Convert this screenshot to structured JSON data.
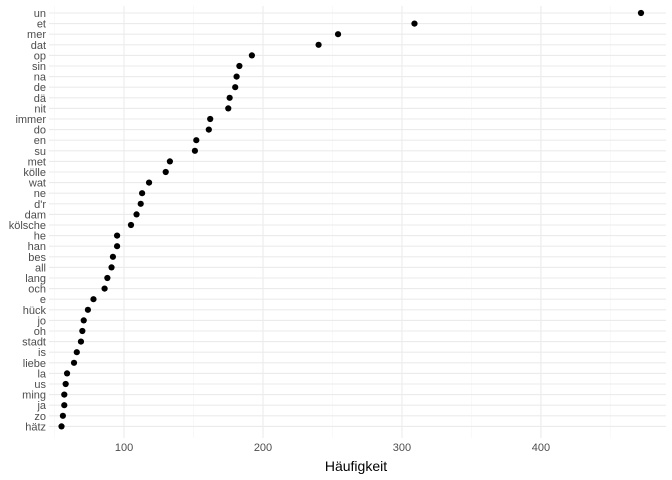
{
  "chart_data": {
    "type": "scatter",
    "xlabel": "Häufigkeit",
    "ylabel": "",
    "title": "",
    "xlim": [
      46,
      490
    ],
    "x_ticks": [
      100,
      200,
      300,
      400
    ],
    "grid": true,
    "point_color": "#000000",
    "grid_major_color": "#ebebeb",
    "grid_minor_color": "#f5f5f5",
    "categories": [
      "un",
      "et",
      "mer",
      "dat",
      "op",
      "sin",
      "na",
      "de",
      "dä",
      "nit",
      "immer",
      "do",
      "en",
      "su",
      "met",
      "kölle",
      "wat",
      "ne",
      "d'r",
      "dam",
      "kölsche",
      "he",
      "han",
      "bes",
      "all",
      "lang",
      "och",
      "e",
      "hück",
      "jo",
      "oh",
      "stadt",
      "is",
      "liebe",
      "la",
      "us",
      "ming",
      "ja",
      "zo",
      "hätz"
    ],
    "values": [
      472,
      309,
      254,
      240,
      192,
      183,
      181,
      180,
      176,
      175,
      162,
      161,
      152,
      151,
      133,
      130,
      118,
      113,
      112,
      109,
      105,
      95,
      95,
      92,
      91,
      88,
      86,
      78,
      74,
      71,
      70,
      69,
      66,
      64,
      59,
      58,
      57,
      57,
      56,
      55
    ]
  }
}
